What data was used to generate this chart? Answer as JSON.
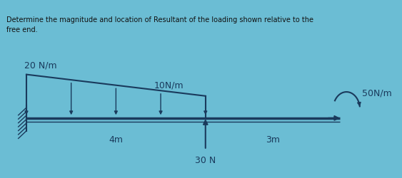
{
  "title_line1": "Determine the magnitude and location of Resultant of the loading shown relative to the",
  "title_line2": "free end.",
  "bg_color": "#6bbdd4",
  "beam_color": "#1a3a5c",
  "load_color": "#1a3a5c",
  "wall_color": "#1a3a5c",
  "text_color": "#1a3a5c",
  "label_20": "20 N/m",
  "label_10": "10N/m",
  "label_50": "50N/m",
  "label_30": "30 N",
  "label_4m": "4m",
  "label_3m": "3m"
}
